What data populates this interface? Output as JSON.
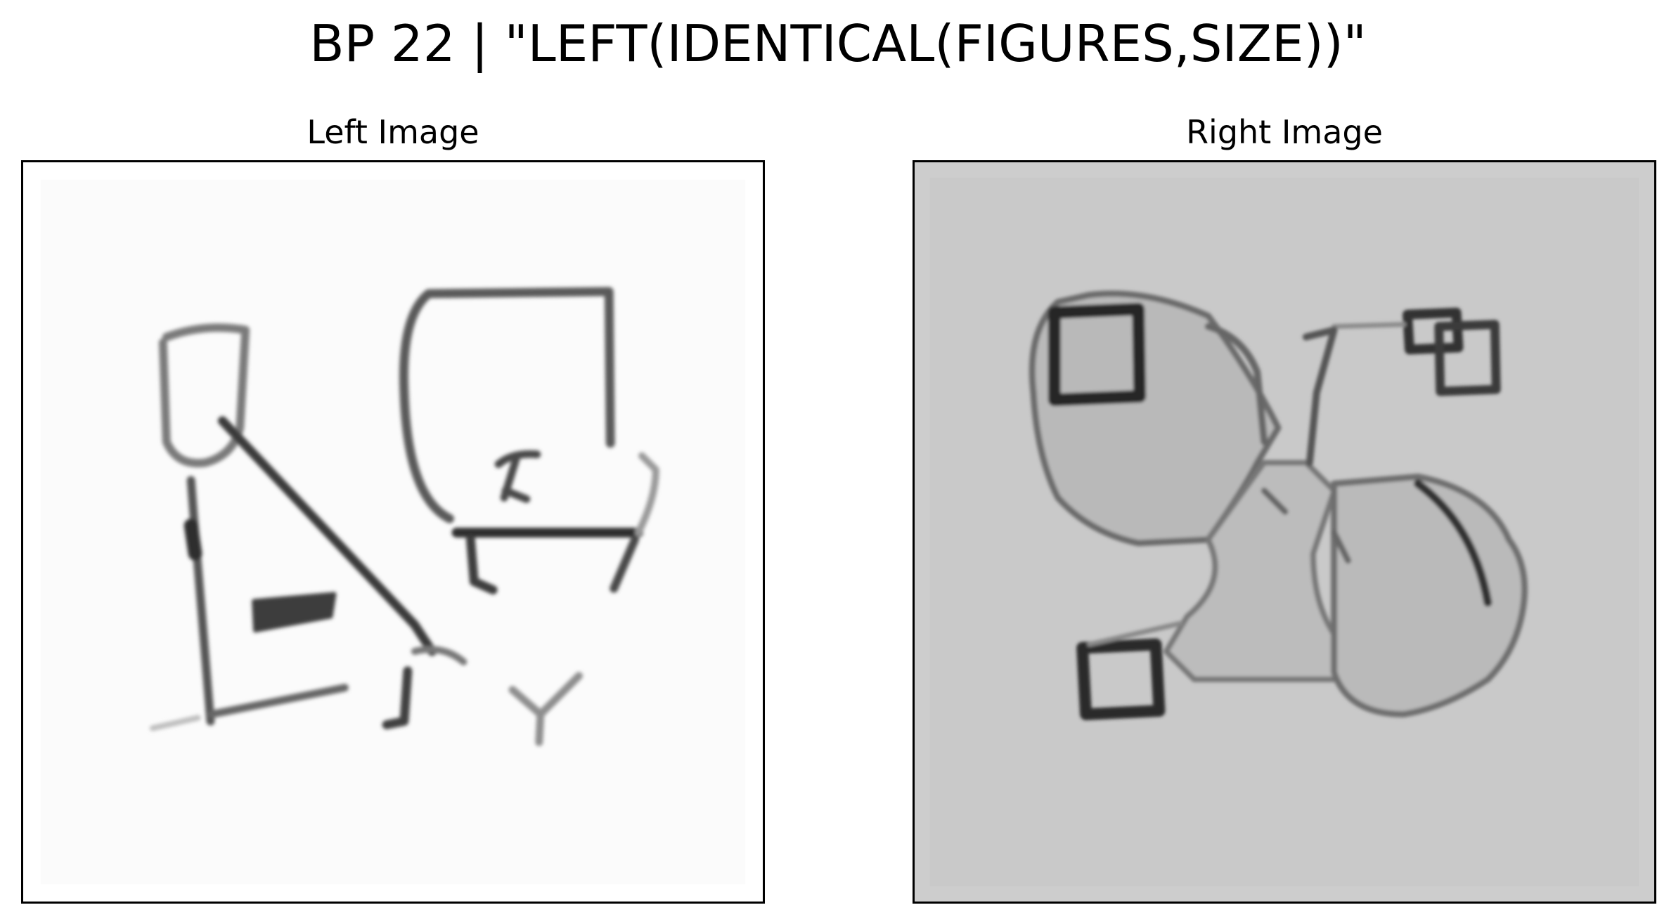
{
  "figure": {
    "suptitle": "BP 22 | \"LEFT(IDENTICAL(FIGURES,SIZE))\""
  },
  "panels": {
    "left": {
      "title": "Left Image",
      "background": "#ffffff"
    },
    "right": {
      "title": "Right Image",
      "background": "#cdcdcd"
    }
  }
}
